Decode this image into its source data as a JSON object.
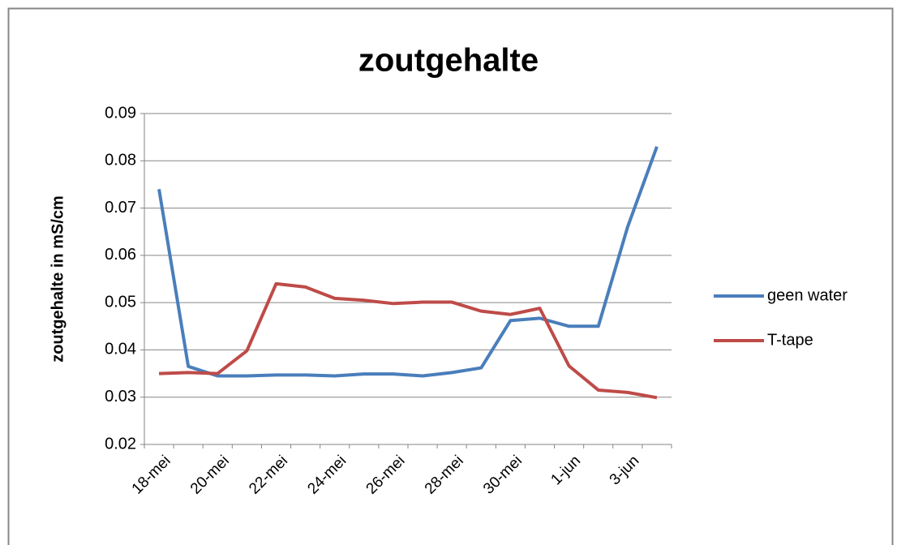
{
  "chart_data": {
    "type": "line",
    "title": "zoutgehalte",
    "y_label": "zoutgehalte in mS/cm",
    "categories": [
      "18-mei",
      null,
      "20-mei",
      null,
      "22-mei",
      null,
      "24-mei",
      null,
      "26-mei",
      null,
      "28-mei",
      null,
      "30-mei",
      null,
      "1-jun",
      null,
      "3-jun",
      null
    ],
    "series": [
      {
        "name": "geen water",
        "color": "#4a7ebb",
        "values": [
          0.074,
          0.0365,
          0.0345,
          0.0345,
          0.0347,
          0.0347,
          0.0345,
          0.0349,
          0.0349,
          0.0345,
          0.0352,
          0.0362,
          0.0462,
          0.0467,
          0.045,
          0.045,
          0.066,
          0.083
        ]
      },
      {
        "name": "T-tape",
        "color": "#be4b48",
        "values": [
          0.035,
          0.0352,
          0.035,
          0.0398,
          0.054,
          0.0533,
          0.0509,
          0.0505,
          0.0498,
          0.0501,
          0.0501,
          0.0482,
          0.0475,
          0.0488,
          0.0366,
          0.0315,
          0.031,
          0.0299
        ]
      }
    ],
    "ylim": [
      0.02,
      0.09
    ],
    "yticks": [
      0.02,
      0.03,
      0.04,
      0.05,
      0.06,
      0.07,
      0.08,
      0.09
    ],
    "grid": true,
    "legend": "right"
  }
}
